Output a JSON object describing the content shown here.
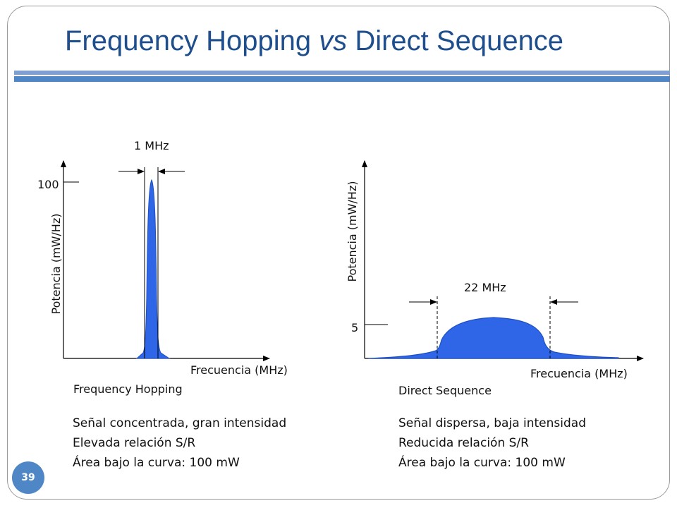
{
  "slide": {
    "title_part1": "Frequency Hopping ",
    "title_italic": "vs",
    "title_part2": " Direct Sequence",
    "number": "39"
  },
  "colors": {
    "title": "#1f4e8c",
    "accent": "#4f86c6",
    "signal_fill": "#2f66e8"
  },
  "left": {
    "bandwidth_label": "1 MHz",
    "y_tick": "100",
    "y_axis_label": "Potencia (mW/Hz)",
    "x_axis_label": "Frecuencia (MHz)",
    "caption": "Frequency Hopping",
    "notes": [
      "Señal concentrada, gran intensidad",
      "Elevada relación S/R",
      "Área bajo la curva: 100 mW"
    ]
  },
  "right": {
    "bandwidth_label": "22 MHz",
    "y_tick": "5",
    "y_axis_label": "Potencia (mW/Hz)",
    "x_axis_label": "Frecuencia (MHz)",
    "caption": "Direct Sequence",
    "notes": [
      "Señal dispersa, baja intensidad",
      "Reducida relación S/R",
      "Área bajo la curva: 100 mW"
    ]
  }
}
